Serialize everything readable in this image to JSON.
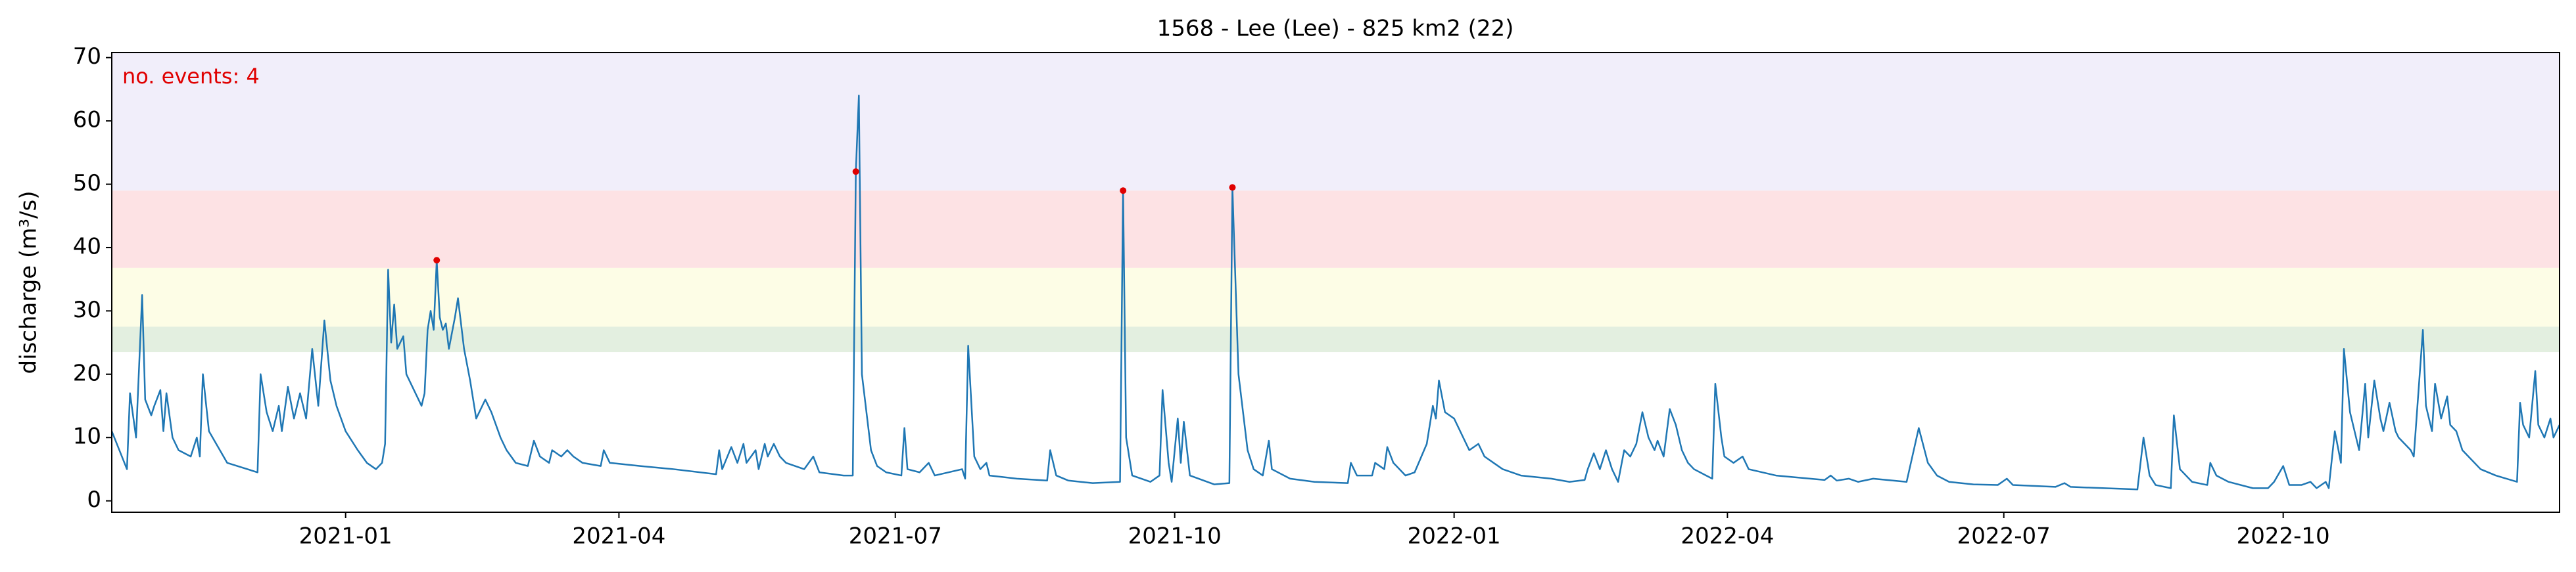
{
  "chart_data": {
    "type": "line",
    "title": "1568 - Lee (Lee) - 825 km2 (22)",
    "ylabel": "discharge (m³/s)",
    "annotation": "no. events: 4",
    "annotation_color": "#e00000",
    "color": "#1f77b4",
    "x": [
      "2020-10-16",
      "2020-10-21",
      "2020-10-22",
      "2020-10-24",
      "2020-10-26",
      "2020-10-27",
      "2020-10-29",
      "2020-10-30",
      "2020-11-01",
      "2020-11-02",
      "2020-11-03",
      "2020-11-05",
      "2020-11-07",
      "2020-11-11",
      "2020-11-13",
      "2020-11-14",
      "2020-11-15",
      "2020-11-17",
      "2020-11-23",
      "2020-12-03",
      "2020-12-04",
      "2020-12-06",
      "2020-12-08",
      "2020-12-10",
      "2020-12-11",
      "2020-12-13",
      "2020-12-15",
      "2020-12-17",
      "2020-12-19",
      "2020-12-21",
      "2020-12-23",
      "2020-12-25",
      "2020-12-27",
      "2020-12-29",
      "2021-01-01",
      "2021-01-05",
      "2021-01-08",
      "2021-01-11",
      "2021-01-13",
      "2021-01-14",
      "2021-01-15",
      "2021-01-16",
      "2021-01-17",
      "2021-01-18",
      "2021-01-20",
      "2021-01-21",
      "2021-01-23",
      "2021-01-26",
      "2021-01-27",
      "2021-01-28",
      "2021-01-29",
      "2021-01-30",
      "2021-01-31",
      "2021-02-01",
      "2021-02-02",
      "2021-02-03",
      "2021-02-04",
      "2021-02-06",
      "2021-02-07",
      "2021-02-09",
      "2021-02-11",
      "2021-02-13",
      "2021-02-15",
      "2021-02-16",
      "2021-02-18",
      "2021-02-21",
      "2021-02-23",
      "2021-02-26",
      "2021-03-02",
      "2021-03-04",
      "2021-03-06",
      "2021-03-09",
      "2021-03-10",
      "2021-03-13",
      "2021-03-15",
      "2021-03-17",
      "2021-03-20",
      "2021-03-26",
      "2021-03-27",
      "2021-03-29",
      "2021-04-08",
      "2021-04-19",
      "2021-05-03",
      "2021-05-04",
      "2021-05-05",
      "2021-05-08",
      "2021-05-10",
      "2021-05-12",
      "2021-05-13",
      "2021-05-16",
      "2021-05-17",
      "2021-05-19",
      "2021-05-20",
      "2021-05-22",
      "2021-05-24",
      "2021-05-26",
      "2021-06-01",
      "2021-06-04",
      "2021-06-06",
      "2021-06-14",
      "2021-06-17",
      "2021-06-18",
      "2021-06-19",
      "2021-06-20",
      "2021-06-23",
      "2021-06-25",
      "2021-06-28",
      "2021-07-03",
      "2021-07-04",
      "2021-07-05",
      "2021-07-09",
      "2021-07-12",
      "2021-07-14",
      "2021-07-23",
      "2021-07-24",
      "2021-07-25",
      "2021-07-27",
      "2021-07-29",
      "2021-07-31",
      "2021-08-01",
      "2021-08-10",
      "2021-08-20",
      "2021-08-21",
      "2021-08-23",
      "2021-08-27",
      "2021-09-04",
      "2021-09-13",
      "2021-09-14",
      "2021-09-15",
      "2021-09-17",
      "2021-09-23",
      "2021-09-26",
      "2021-09-27",
      "2021-09-29",
      "2021-09-30",
      "2021-10-02",
      "2021-10-03",
      "2021-10-04",
      "2021-10-06",
      "2021-10-14",
      "2021-10-19",
      "2021-10-20",
      "2021-10-22",
      "2021-10-25",
      "2021-10-27",
      "2021-10-30",
      "2021-11-01",
      "2021-11-02",
      "2021-11-08",
      "2021-11-16",
      "2021-11-27",
      "2021-11-28",
      "2021-11-30",
      "2021-12-05",
      "2021-12-06",
      "2021-12-09",
      "2021-12-10",
      "2021-12-12",
      "2021-12-16",
      "2021-12-19",
      "2021-12-23",
      "2021-12-25",
      "2021-12-26",
      "2021-12-27",
      "2021-12-29",
      "2022-01-01",
      "2022-01-04",
      "2022-01-06",
      "2022-01-09",
      "2022-01-11",
      "2022-01-14",
      "2022-01-17",
      "2022-01-23",
      "2022-02-02",
      "2022-02-08",
      "2022-02-13",
      "2022-02-14",
      "2022-02-16",
      "2022-02-18",
      "2022-02-20",
      "2022-02-22",
      "2022-02-24",
      "2022-02-26",
      "2022-02-28",
      "2022-03-02",
      "2022-03-04",
      "2022-03-06",
      "2022-03-08",
      "2022-03-09",
      "2022-03-11",
      "2022-03-13",
      "2022-03-15",
      "2022-03-17",
      "2022-03-19",
      "2022-03-21",
      "2022-03-25",
      "2022-03-27",
      "2022-03-28",
      "2022-03-30",
      "2022-03-31",
      "2022-04-03",
      "2022-04-06",
      "2022-04-08",
      "2022-04-17",
      "2022-05-03",
      "2022-05-05",
      "2022-05-07",
      "2022-05-11",
      "2022-05-14",
      "2022-05-19",
      "2022-05-30",
      "2022-06-03",
      "2022-06-06",
      "2022-06-09",
      "2022-06-13",
      "2022-06-21",
      "2022-06-29",
      "2022-07-02",
      "2022-07-04",
      "2022-07-18",
      "2022-07-21",
      "2022-07-23",
      "2022-08-14",
      "2022-08-16",
      "2022-08-18",
      "2022-08-20",
      "2022-08-25",
      "2022-08-26",
      "2022-08-28",
      "2022-09-01",
      "2022-09-06",
      "2022-09-07",
      "2022-09-09",
      "2022-09-13",
      "2022-09-21",
      "2022-09-26",
      "2022-09-28",
      "2022-10-01",
      "2022-10-03",
      "2022-10-07",
      "2022-10-10",
      "2022-10-12",
      "2022-10-15",
      "2022-10-16",
      "2022-10-18",
      "2022-10-20",
      "2022-10-21",
      "2022-10-23",
      "2022-10-25",
      "2022-10-26",
      "2022-10-28",
      "2022-10-29",
      "2022-10-31",
      "2022-11-02",
      "2022-11-03",
      "2022-11-05",
      "2022-11-07",
      "2022-11-08",
      "2022-11-10",
      "2022-11-12",
      "2022-11-13",
      "2022-11-16",
      "2022-11-17",
      "2022-11-19",
      "2022-11-20",
      "2022-11-22",
      "2022-11-24",
      "2022-11-25",
      "2022-11-27",
      "2022-11-29",
      "2022-12-05",
      "2022-12-10",
      "2022-12-17",
      "2022-12-18",
      "2022-12-19",
      "2022-12-21",
      "2022-12-23",
      "2022-12-24",
      "2022-12-26",
      "2022-12-28",
      "2022-12-29",
      "2022-12-31"
    ],
    "values": [
      11,
      5,
      17,
      10,
      32.5,
      16,
      13.5,
      15,
      17.5,
      11,
      17,
      10,
      8,
      7,
      10,
      7,
      20,
      11,
      6,
      4.5,
      20,
      14,
      11,
      15,
      11,
      18,
      13,
      17,
      13,
      24,
      15,
      28.5,
      19,
      15,
      11,
      8,
      6,
      5,
      6,
      9,
      36.5,
      25,
      31,
      24,
      26,
      20,
      18,
      15,
      17,
      27,
      30,
      27,
      38,
      29,
      27,
      28,
      24,
      29,
      32,
      24,
      19,
      13,
      15,
      16,
      14,
      10,
      8,
      6,
      5.5,
      9.5,
      7,
      6,
      8,
      7,
      8,
      7,
      6,
      5.5,
      8,
      6,
      5.5,
      5,
      4.2,
      8,
      5,
      8.5,
      6,
      9,
      6,
      8,
      5,
      9,
      7,
      9,
      7,
      6,
      5,
      7,
      4.5,
      4,
      4,
      52,
      64,
      20,
      8,
      5.5,
      4.5,
      4,
      11.5,
      5,
      4.5,
      6,
      4,
      5,
      3.5,
      24.5,
      7,
      5,
      6,
      4,
      3.5,
      3.2,
      8,
      4,
      3.2,
      2.8,
      3,
      49,
      10,
      4,
      3,
      4,
      17.5,
      6,
      3,
      13,
      6,
      12.5,
      4,
      2.6,
      2.8,
      49.5,
      20,
      8,
      5,
      4,
      9.5,
      5,
      3.5,
      3,
      2.8,
      6,
      4,
      4,
      6,
      5,
      8.5,
      6,
      4,
      4.5,
      9,
      15,
      13,
      19,
      14,
      13,
      10,
      8,
      9,
      7,
      6,
      5,
      4,
      3.5,
      3,
      3.3,
      5,
      7.5,
      5,
      8,
      5,
      3,
      8,
      7,
      9,
      14,
      10,
      8,
      9.5,
      7,
      14.5,
      12,
      8,
      6,
      5,
      4,
      3.5,
      18.5,
      10,
      7,
      6,
      7,
      5,
      4,
      3.3,
      4,
      3.2,
      3.5,
      3,
      3.5,
      3,
      11.5,
      6,
      4,
      3,
      2.6,
      2.5,
      3.5,
      2.5,
      2.2,
      2.8,
      2.2,
      1.8,
      10,
      4,
      2.5,
      2,
      13.5,
      5,
      3,
      2.5,
      6,
      4,
      3,
      2,
      2,
      3,
      5.5,
      2.5,
      2.5,
      3,
      2,
      3,
      2,
      11,
      6,
      24,
      14,
      10,
      8,
      18.5,
      10,
      19,
      13,
      11,
      15.5,
      11,
      10,
      9,
      8,
      7,
      27,
      15,
      11,
      18.5,
      13,
      16.5,
      12,
      11,
      8,
      5,
      4,
      3,
      15.5,
      12,
      10,
      20.5,
      12,
      10,
      13,
      10,
      12
    ],
    "events": {
      "x": [
        "2021-01-31",
        "2021-06-18",
        "2021-09-14",
        "2021-10-20"
      ],
      "values": [
        38,
        52,
        49,
        49.5
      ],
      "color": "#e00000"
    },
    "bands": [
      {
        "from": 23.5,
        "to": 27.5,
        "color": "#e3efe0"
      },
      {
        "from": 27.5,
        "to": 36.8,
        "color": "#fdfde6"
      },
      {
        "from": 36.8,
        "to": 49,
        "color": "#fde2e4"
      },
      {
        "from": 49,
        "to": 70.8,
        "color": "#f1eefa"
      }
    ],
    "xlim": [
      "2020-10-16",
      "2022-12-31"
    ],
    "xticks": [
      {
        "value": "2021-01-01",
        "label": "2021-01"
      },
      {
        "value": "2021-04-01",
        "label": "2021-04"
      },
      {
        "value": "2021-07-01",
        "label": "2021-07"
      },
      {
        "value": "2021-10-01",
        "label": "2021-10"
      },
      {
        "value": "2022-01-01",
        "label": "2022-01"
      },
      {
        "value": "2022-04-01",
        "label": "2022-04"
      },
      {
        "value": "2022-07-01",
        "label": "2022-07"
      },
      {
        "value": "2022-10-01",
        "label": "2022-10"
      }
    ],
    "ylim": [
      -1.8,
      70.8
    ],
    "yticks": [
      0,
      10,
      20,
      30,
      40,
      50,
      60,
      70
    ]
  }
}
